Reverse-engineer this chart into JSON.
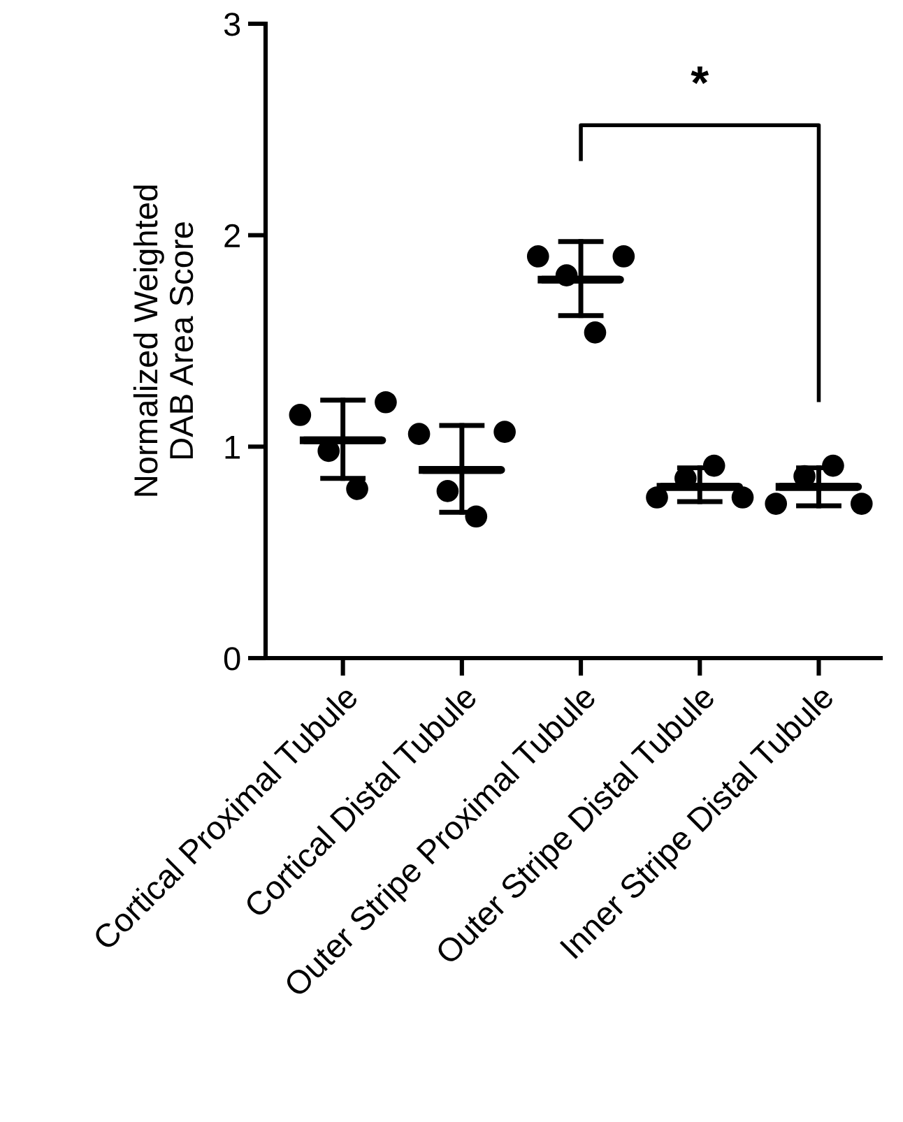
{
  "chart_data": {
    "type": "scatter",
    "ylabel": "Normalized Weighted\nDAB Area Score",
    "categories": [
      "Cortical Proximal Tubule",
      "Cortical Distal Tubule",
      "Outer Stripe Proximal Tubule",
      "Outer Stripe Distal Tubule",
      "Inner Stripe Distal Tubule"
    ],
    "series": [
      {
        "color": "#000000",
        "marker": "circle",
        "values": [
          1.15,
          1.06,
          1.9,
          0.76,
          0.73
        ]
      },
      {
        "color": "#000000",
        "marker": "circle",
        "values": [
          0.98,
          0.79,
          1.81,
          0.85,
          0.86
        ]
      },
      {
        "color": "#000000",
        "marker": "circle",
        "values": [
          0.8,
          0.67,
          1.54,
          0.91,
          0.91
        ]
      },
      {
        "color": "#000000",
        "marker": "circle",
        "values": [
          1.21,
          1.07,
          1.9,
          0.76,
          0.73
        ]
      },
      {
        "type": "box",
        "color": "#000000",
        "boxes": [
          {
            "low": 0.85,
            "q1": 1.03,
            "median": 1.03,
            "q3": 1.03,
            "high": 1.22
          },
          {
            "low": 0.69,
            "q1": 0.89,
            "median": 0.89,
            "q3": 0.89,
            "high": 1.1
          },
          {
            "low": 1.62,
            "q1": 1.79,
            "median": 1.79,
            "q3": 1.79,
            "high": 1.97
          },
          {
            "low": 0.74,
            "q1": 0.81,
            "median": 0.81,
            "q3": 0.81,
            "high": 0.9
          },
          {
            "low": 0.72,
            "q1": 0.81,
            "median": 0.81,
            "q3": 0.81,
            "high": 0.9
          }
        ]
      }
    ],
    "ylim": [
      0,
      3
    ],
    "yticks": [
      0,
      1,
      2,
      3
    ],
    "grid": false,
    "legend": false,
    "annotations": [
      "*"
    ]
  }
}
